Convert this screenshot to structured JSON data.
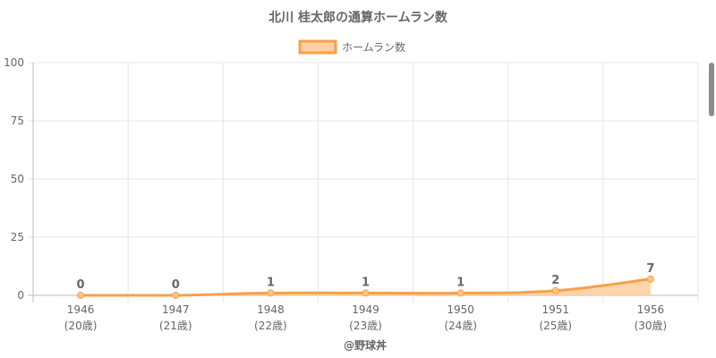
{
  "chart_data": {
    "type": "area",
    "title": "北川 桂太郎の通算ホームラン数",
    "categories": [
      "1946",
      "1947",
      "1948",
      "1949",
      "1950",
      "1951",
      "1956"
    ],
    "category_sublabels": [
      "(20歳)",
      "(21歳)",
      "(22歳)",
      "(23歳)",
      "(24歳)",
      "(25歳)",
      "(30歳)"
    ],
    "series": [
      {
        "name": "ホームラン数",
        "values": [
          0,
          0,
          1,
          1,
          1,
          2,
          7
        ],
        "color": "#f7a04b",
        "fill": "#fdd0a3"
      }
    ],
    "ylim": [
      0,
      100
    ],
    "yticks": [
      0,
      25,
      50,
      75,
      100
    ],
    "grid": true,
    "legend": "top-center",
    "xlabel": "",
    "ylabel": "",
    "footer": "@野球丼"
  }
}
